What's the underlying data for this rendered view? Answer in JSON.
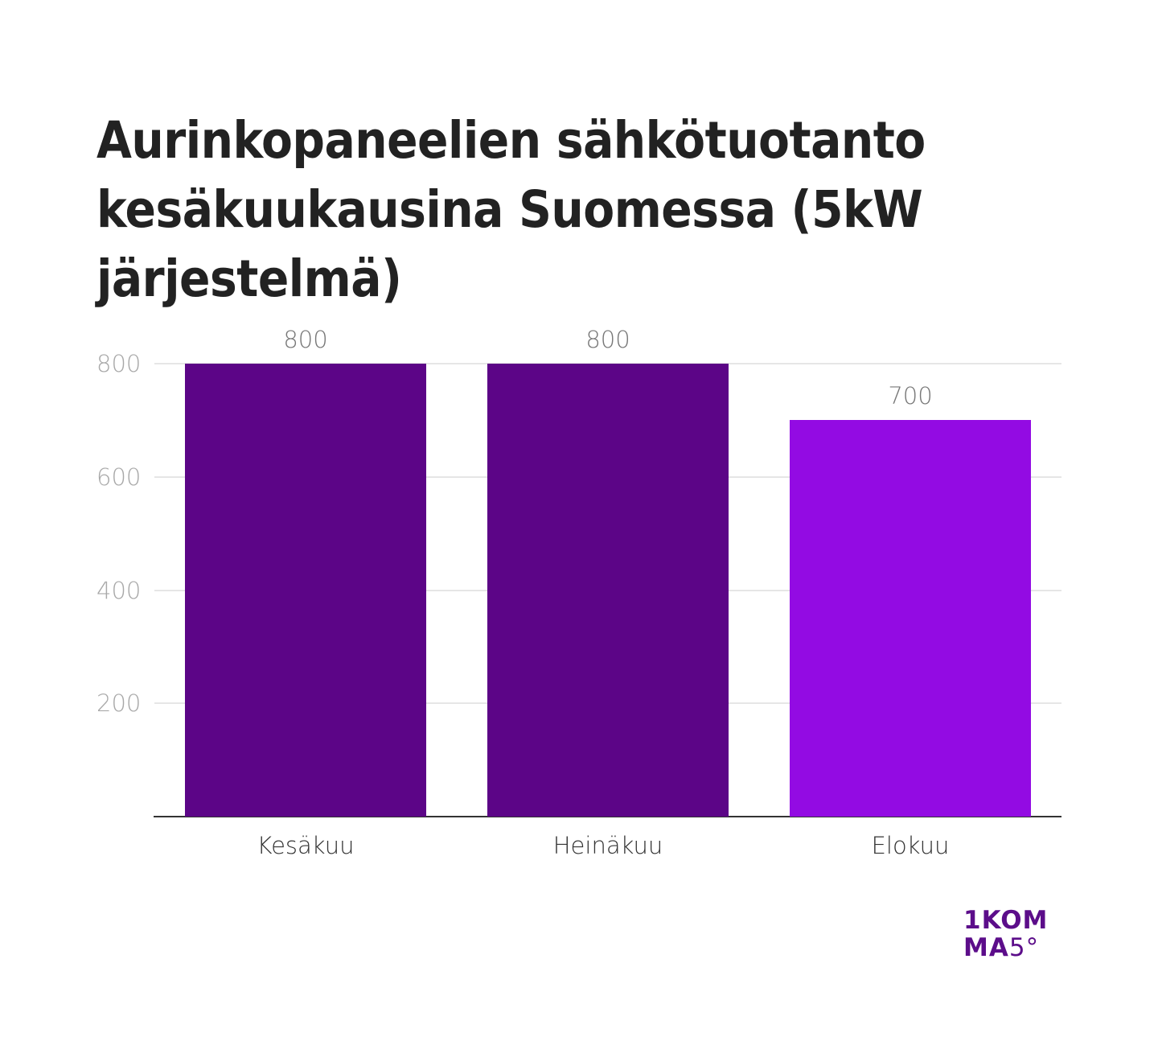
{
  "chart_data": {
    "type": "bar",
    "title": "Aurinkopaneelien sähkötuotanto kesäkuukausina Suomessa (5kW järjestelmä)",
    "xlabel": "",
    "ylabel": "",
    "categories": [
      "Kesäkuu",
      "Heinäkuu",
      "Elokuu"
    ],
    "values": [
      800,
      800,
      700
    ],
    "data_labels": [
      "800",
      "800",
      "700"
    ],
    "bar_colors": [
      "#5c0587",
      "#5c0587",
      "#930be3"
    ],
    "ylim": [
      0,
      800
    ],
    "yticks": [
      200,
      400,
      600,
      800
    ],
    "ytick_labels": [
      "200",
      "400",
      "600",
      "800"
    ],
    "grid": true,
    "legend": null
  },
  "header": {
    "title": "Aurinkopaneelien sähkötuotanto kesäkuukausina Suomessa (5kW järjestelmä)"
  },
  "branding": {
    "logo_line1": "1KOM",
    "logo_line2_bold": "MA",
    "logo_line2_light": "5°",
    "logo_color": "#5c0d8a"
  }
}
